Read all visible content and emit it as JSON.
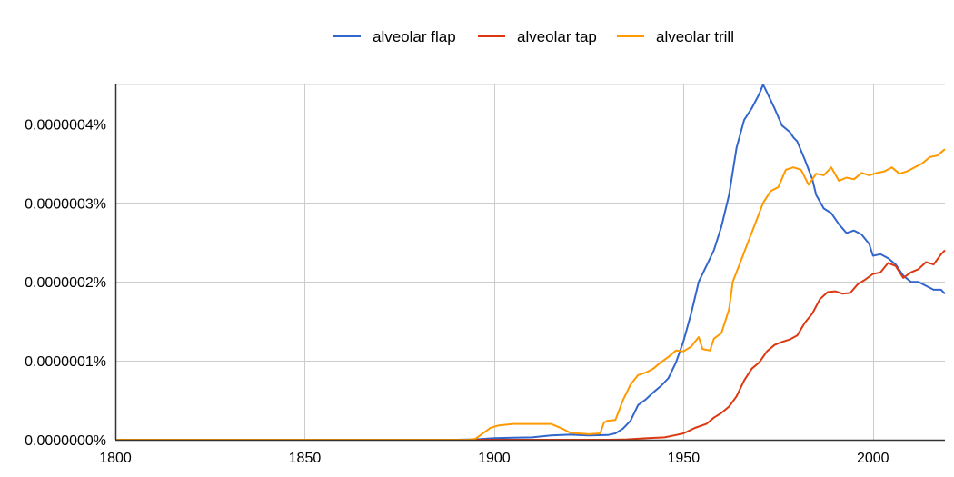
{
  "chart_data": {
    "type": "line",
    "title": "",
    "xlabel": "",
    "ylabel": "",
    "xlim": [
      1800,
      2019
    ],
    "ylim": [
      0,
      4.5e-07
    ],
    "grid": true,
    "legend_position": "top-center",
    "x_ticks": [
      {
        "value": 1800,
        "label": "1800"
      },
      {
        "value": 1850,
        "label": "1850"
      },
      {
        "value": 1900,
        "label": "1900"
      },
      {
        "value": 1950,
        "label": "1950"
      },
      {
        "value": 2000,
        "label": "2000"
      }
    ],
    "y_ticks": [
      {
        "value": 0,
        "label": "0.0000000%"
      },
      {
        "value": 1e-07,
        "label": "0.0000001%"
      },
      {
        "value": 2e-07,
        "label": "0.0000002%"
      },
      {
        "value": 3e-07,
        "label": "0.0000003%"
      },
      {
        "value": 4e-07,
        "label": "0.0000004%"
      }
    ],
    "series": [
      {
        "name": "alveolar flap",
        "color": "#3366cc",
        "points": [
          [
            1800,
            0
          ],
          [
            1890,
            0
          ],
          [
            1895,
            5e-10
          ],
          [
            1900,
            2e-09
          ],
          [
            1905,
            2.5e-09
          ],
          [
            1910,
            3e-09
          ],
          [
            1915,
            5.5e-09
          ],
          [
            1920,
            6.5e-09
          ],
          [
            1925,
            5.5e-09
          ],
          [
            1930,
            6e-09
          ],
          [
            1932,
            8e-09
          ],
          [
            1934,
            1.4e-08
          ],
          [
            1936,
            2.4e-08
          ],
          [
            1938,
            4.4e-08
          ],
          [
            1940,
            5.1e-08
          ],
          [
            1942,
            6e-08
          ],
          [
            1944,
            6.8e-08
          ],
          [
            1946,
            7.8e-08
          ],
          [
            1948,
            9.8e-08
          ],
          [
            1950,
            1.25e-07
          ],
          [
            1952,
            1.6e-07
          ],
          [
            1954,
            2e-07
          ],
          [
            1956,
            2.2e-07
          ],
          [
            1958,
            2.4e-07
          ],
          [
            1960,
            2.7e-07
          ],
          [
            1962,
            3.1e-07
          ],
          [
            1964,
            3.7e-07
          ],
          [
            1966,
            4.05e-07
          ],
          [
            1968,
            4.2e-07
          ],
          [
            1970,
            4.38e-07
          ],
          [
            1971,
            4.5e-07
          ],
          [
            1972,
            4.4e-07
          ],
          [
            1974,
            4.2e-07
          ],
          [
            1976,
            3.98e-07
          ],
          [
            1978,
            3.9e-07
          ],
          [
            1979,
            3.83e-07
          ],
          [
            1980,
            3.78e-07
          ],
          [
            1982,
            3.55e-07
          ],
          [
            1984,
            3.3e-07
          ],
          [
            1985,
            3.1e-07
          ],
          [
            1987,
            2.93e-07
          ],
          [
            1989,
            2.87e-07
          ],
          [
            1991,
            2.73e-07
          ],
          [
            1993,
            2.62e-07
          ],
          [
            1995,
            2.65e-07
          ],
          [
            1997,
            2.6e-07
          ],
          [
            1999,
            2.48e-07
          ],
          [
            2000,
            2.33e-07
          ],
          [
            2002,
            2.35e-07
          ],
          [
            2004,
            2.3e-07
          ],
          [
            2006,
            2.22e-07
          ],
          [
            2008,
            2.08e-07
          ],
          [
            2010,
            2e-07
          ],
          [
            2012,
            2e-07
          ],
          [
            2014,
            1.95e-07
          ],
          [
            2016,
            1.9e-07
          ],
          [
            2018,
            1.9e-07
          ],
          [
            2019,
            1.85e-07
          ]
        ]
      },
      {
        "name": "alveolar tap",
        "color": "#dc3912",
        "points": [
          [
            1800,
            0
          ],
          [
            1930,
            0
          ],
          [
            1935,
            5e-10
          ],
          [
            1940,
            1.8e-09
          ],
          [
            1945,
            3e-09
          ],
          [
            1948,
            6e-09
          ],
          [
            1950,
            8e-09
          ],
          [
            1953,
            1.5e-08
          ],
          [
            1956,
            2e-08
          ],
          [
            1958,
            2.8e-08
          ],
          [
            1960,
            3.4e-08
          ],
          [
            1962,
            4.2e-08
          ],
          [
            1964,
            5.5e-08
          ],
          [
            1966,
            7.5e-08
          ],
          [
            1968,
            9e-08
          ],
          [
            1970,
            9.8e-08
          ],
          [
            1972,
            1.12e-07
          ],
          [
            1974,
            1.2e-07
          ],
          [
            1976,
            1.24e-07
          ],
          [
            1978,
            1.27e-07
          ],
          [
            1980,
            1.32e-07
          ],
          [
            1982,
            1.48e-07
          ],
          [
            1984,
            1.6e-07
          ],
          [
            1986,
            1.78e-07
          ],
          [
            1988,
            1.87e-07
          ],
          [
            1990,
            1.88e-07
          ],
          [
            1992,
            1.85e-07
          ],
          [
            1994,
            1.86e-07
          ],
          [
            1996,
            1.97e-07
          ],
          [
            1998,
            2.03e-07
          ],
          [
            2000,
            2.1e-07
          ],
          [
            2002,
            2.12e-07
          ],
          [
            2004,
            2.24e-07
          ],
          [
            2006,
            2.2e-07
          ],
          [
            2008,
            2.05e-07
          ],
          [
            2010,
            2.12e-07
          ],
          [
            2012,
            2.16e-07
          ],
          [
            2014,
            2.25e-07
          ],
          [
            2016,
            2.22e-07
          ],
          [
            2018,
            2.35e-07
          ],
          [
            2019,
            2.4e-07
          ]
        ]
      },
      {
        "name": "alveolar trill",
        "color": "#ff9900",
        "points": [
          [
            1800,
            0
          ],
          [
            1893,
            0
          ],
          [
            1895,
            1e-09
          ],
          [
            1897,
            8e-09
          ],
          [
            1899,
            1.5e-08
          ],
          [
            1901,
            1.8e-08
          ],
          [
            1903,
            1.9e-08
          ],
          [
            1905,
            2e-08
          ],
          [
            1910,
            2e-08
          ],
          [
            1915,
            2e-08
          ],
          [
            1918,
            1.4e-08
          ],
          [
            1920,
            9e-09
          ],
          [
            1925,
            7e-09
          ],
          [
            1928,
            8e-09
          ],
          [
            1929,
            2.2e-08
          ],
          [
            1930,
            2.4e-08
          ],
          [
            1932,
            2.5e-08
          ],
          [
            1934,
            5e-08
          ],
          [
            1936,
            7e-08
          ],
          [
            1938,
            8.2e-08
          ],
          [
            1940,
            8.5e-08
          ],
          [
            1942,
            9e-08
          ],
          [
            1944,
            9.8e-08
          ],
          [
            1946,
            1.05e-07
          ],
          [
            1948,
            1.13e-07
          ],
          [
            1950,
            1.12e-07
          ],
          [
            1952,
            1.18e-07
          ],
          [
            1954,
            1.3e-07
          ],
          [
            1955,
            1.15e-07
          ],
          [
            1957,
            1.13e-07
          ],
          [
            1958,
            1.28e-07
          ],
          [
            1960,
            1.35e-07
          ],
          [
            1962,
            1.65e-07
          ],
          [
            1963,
            2e-07
          ],
          [
            1965,
            2.25e-07
          ],
          [
            1967,
            2.5e-07
          ],
          [
            1969,
            2.75e-07
          ],
          [
            1971,
            3e-07
          ],
          [
            1973,
            3.15e-07
          ],
          [
            1975,
            3.2e-07
          ],
          [
            1977,
            3.42e-07
          ],
          [
            1979,
            3.45e-07
          ],
          [
            1981,
            3.42e-07
          ],
          [
            1983,
            3.23e-07
          ],
          [
            1985,
            3.37e-07
          ],
          [
            1987,
            3.35e-07
          ],
          [
            1989,
            3.45e-07
          ],
          [
            1991,
            3.28e-07
          ],
          [
            1993,
            3.32e-07
          ],
          [
            1995,
            3.3e-07
          ],
          [
            1997,
            3.38e-07
          ],
          [
            1999,
            3.35e-07
          ],
          [
            2001,
            3.38e-07
          ],
          [
            2003,
            3.4e-07
          ],
          [
            2005,
            3.45e-07
          ],
          [
            2007,
            3.37e-07
          ],
          [
            2009,
            3.4e-07
          ],
          [
            2011,
            3.45e-07
          ],
          [
            2013,
            3.5e-07
          ],
          [
            2015,
            3.58e-07
          ],
          [
            2017,
            3.6e-07
          ],
          [
            2019,
            3.68e-07
          ]
        ]
      }
    ]
  }
}
